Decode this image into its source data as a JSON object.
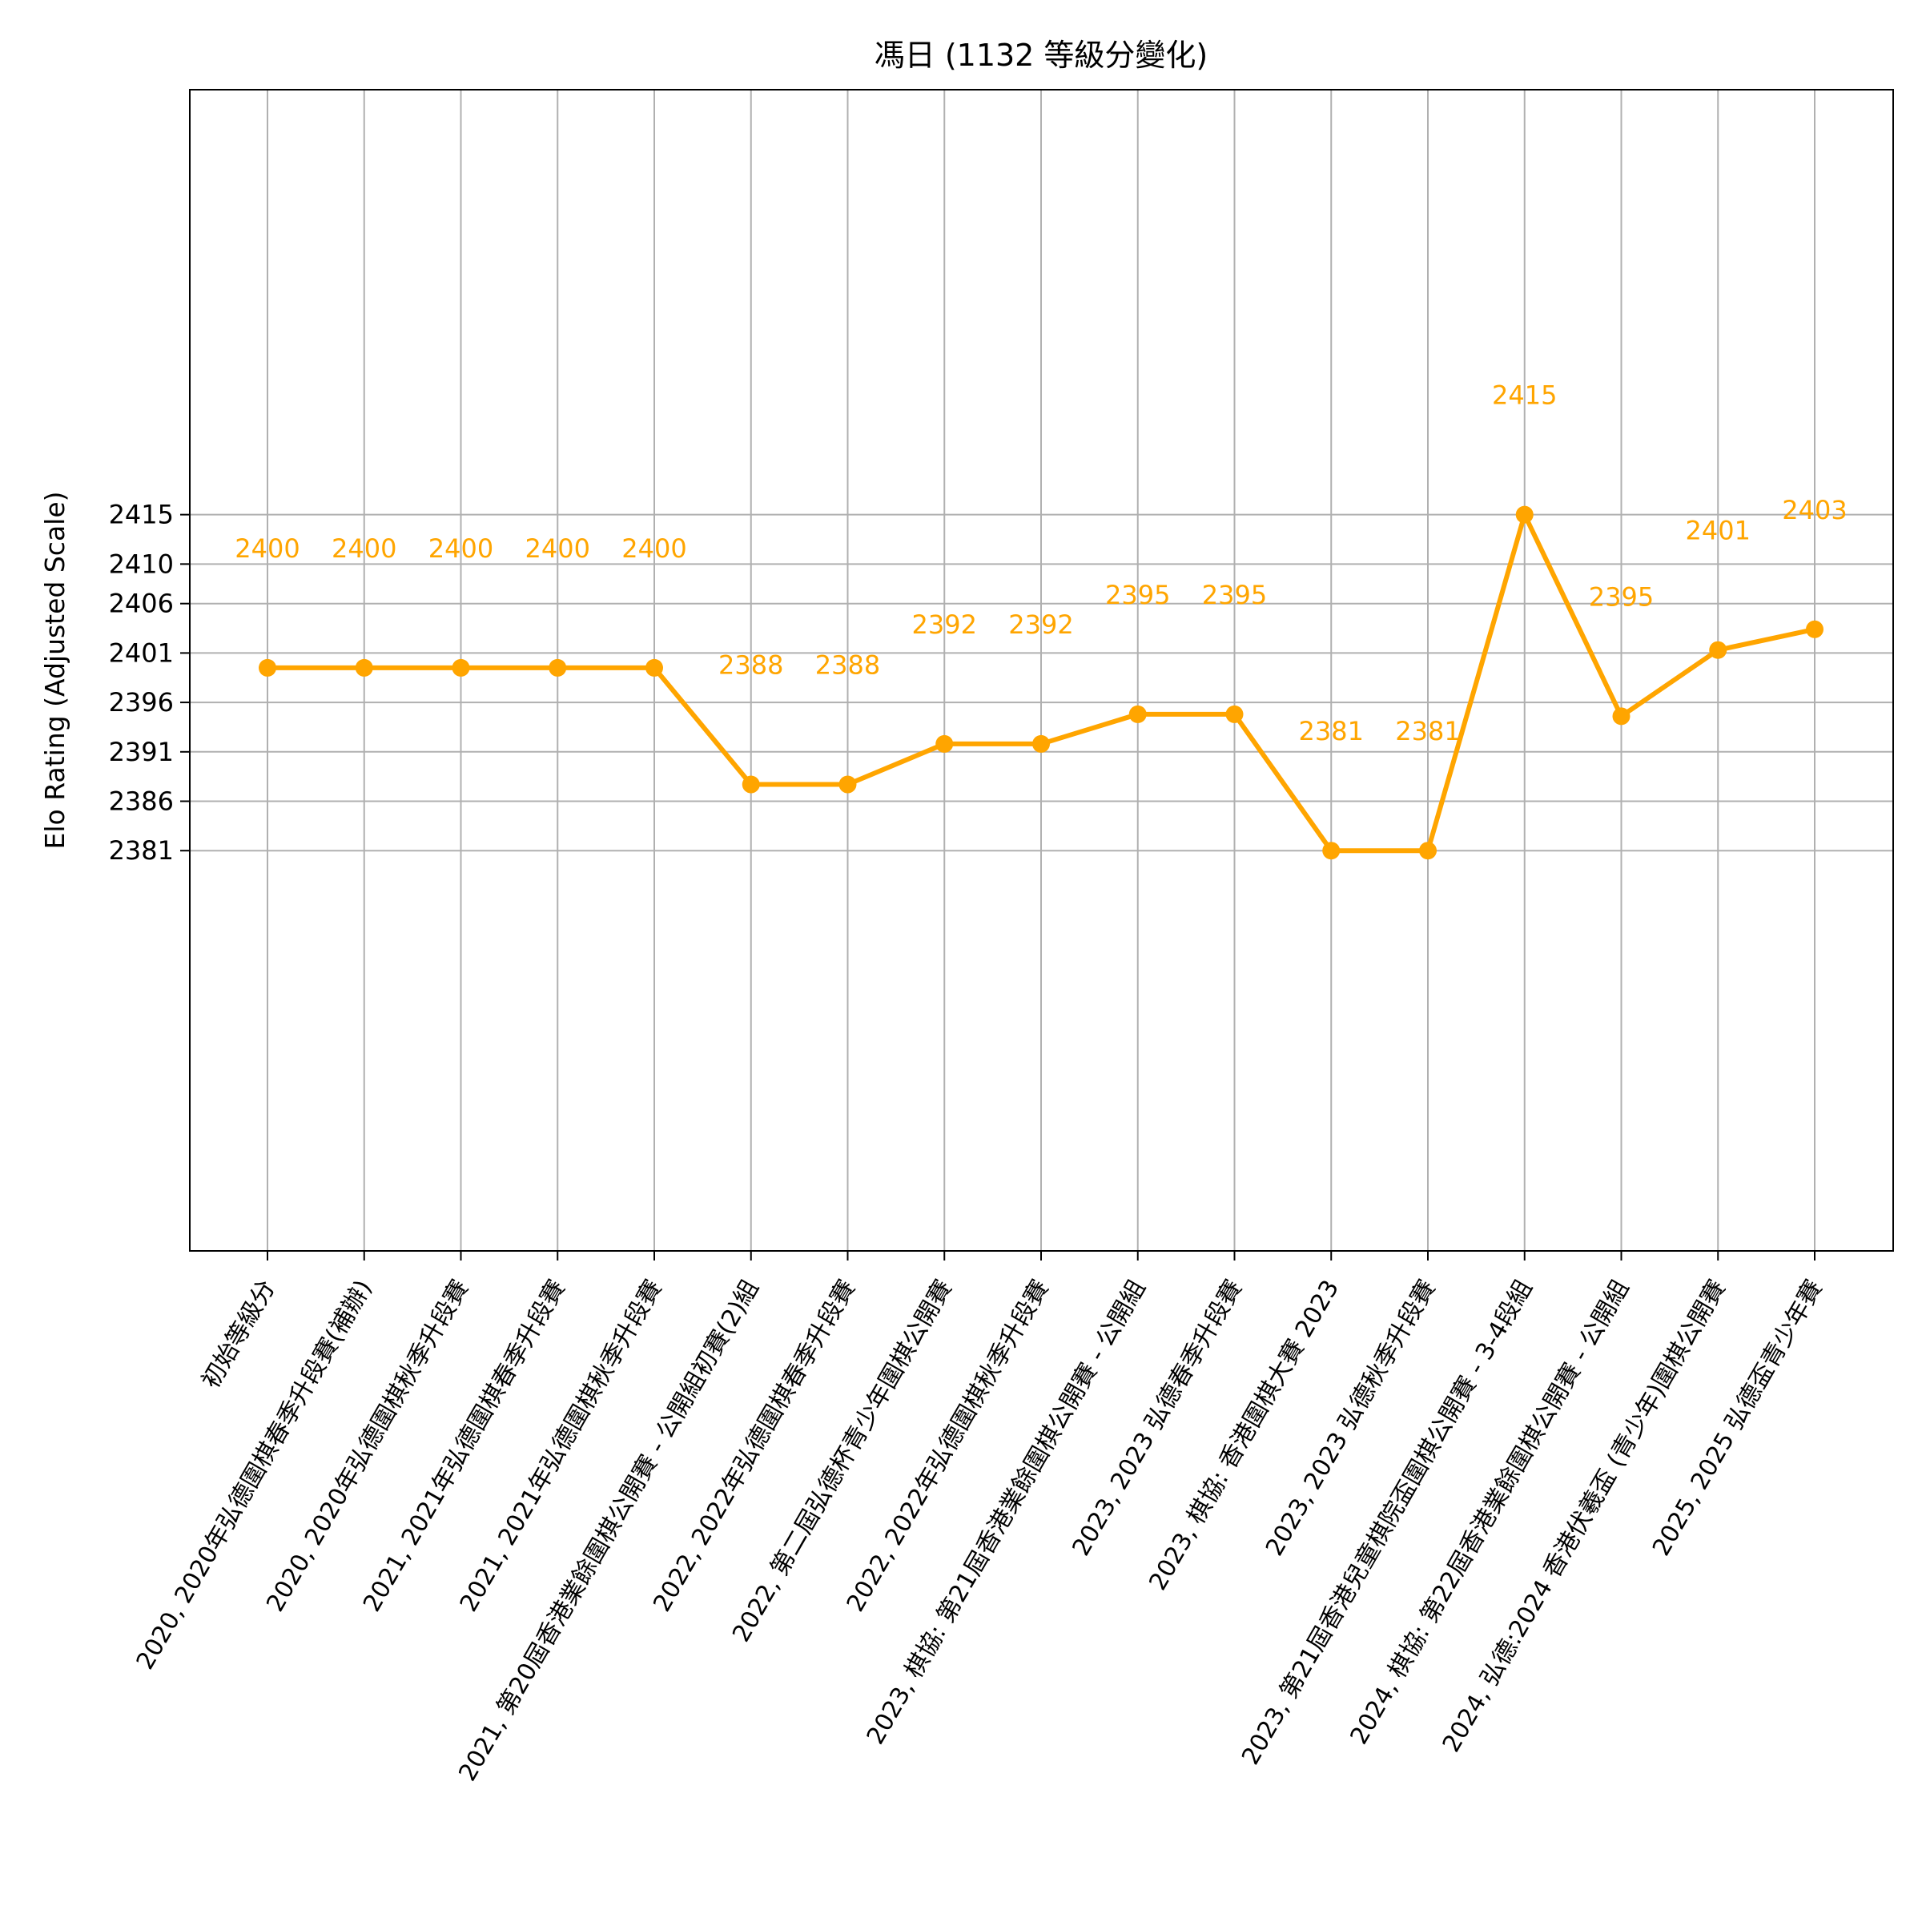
{
  "chart_data": {
    "type": "line",
    "title": "馮日 (1132 等級分變化)",
    "xlabel": "",
    "ylabel": "Elo Rating (Adjusted Scale)",
    "categories": [
      "初始等級分",
      "2020, 2020年弘德圍棋春季升段賽(補辦)",
      "2020, 2020年弘德圍棋秋季升段賽",
      "2021, 2021年弘德圍棋春季升段賽",
      "2021, 2021年弘德圍棋秋季升段賽",
      "2021, 第20屆香港業餘圍棋公開賽 - 公開組初賽(2)組",
      "2022, 2022年弘德圍棋春季升段賽",
      "2022, 第二屆弘德杯青少年圍棋公開賽",
      "2022, 2022年弘德圍棋秋季升段賽",
      "2023, 棋協: 第21屆香港業餘圍棋公開賽 - 公開組",
      "2023, 2023 弘德春季升段賽",
      "2023, 棋協: 香港圍棋大賽 2023",
      "2023, 2023 弘德秋季升段賽",
      "2023, 第21屆香港兒童棋院盃圍棋公開賽 - 3-4段組",
      "2024, 棋協: 第22屆香港業餘圍棋公開賽 - 公開組",
      "2024, 弘德:2024 香港伏羲盃 (青少年)圍棋公開賽",
      "2025, 2025 弘德盃青少年賽"
    ],
    "series": [
      {
        "color": "#FFA500",
        "values": [
          2399.5,
          2399.5,
          2399.5,
          2399.5,
          2399.5,
          2387.7,
          2387.7,
          2391.8,
          2391.8,
          2394.8,
          2394.8,
          2381.0,
          2381.0,
          2415.0,
          2394.6,
          2401.3,
          2403.4
        ],
        "labels": [
          "2400",
          "2400",
          "2400",
          "2400",
          "2400",
          "2388",
          "2388",
          "2392",
          "2392",
          "2395",
          "2395",
          "2381",
          "2381",
          "2415",
          "2395",
          "2401",
          "2403"
        ]
      }
    ],
    "yticks": [
      2381,
      2386,
      2391,
      2396,
      2401,
      2406,
      2410,
      2415
    ],
    "ylim": [
      2340.5,
      2458
    ],
    "grid": true,
    "legend": "none"
  }
}
